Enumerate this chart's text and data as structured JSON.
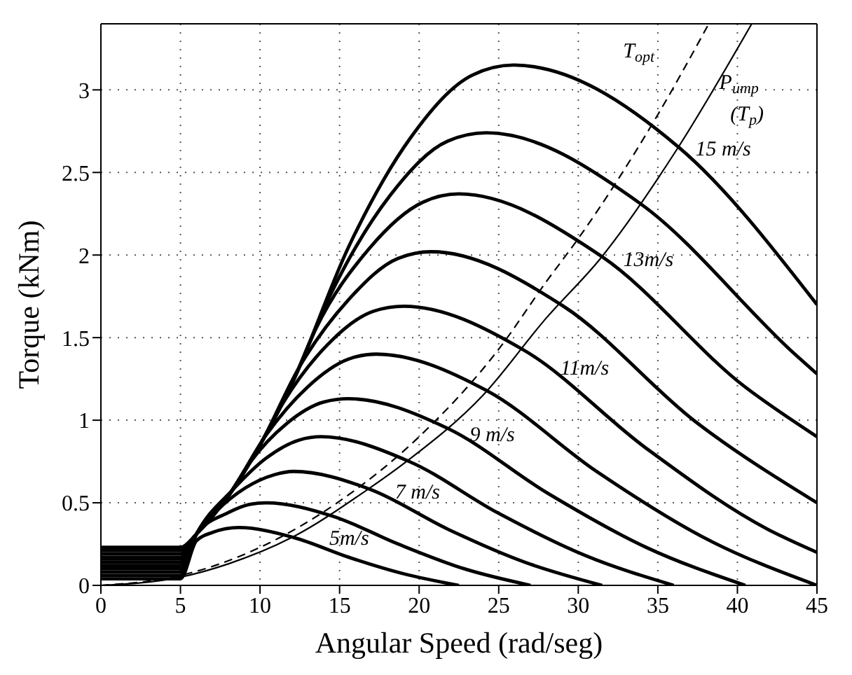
{
  "chart_data": {
    "type": "line",
    "xlabel": "Angular Speed (rad/seg)",
    "ylabel": "Torque (kNm)",
    "xlim": [
      0,
      45
    ],
    "ylim": [
      0,
      3.4
    ],
    "xticks": [
      0,
      5,
      10,
      15,
      20,
      25,
      30,
      35,
      40,
      45
    ],
    "yticks": [
      0,
      0.5,
      1,
      1.5,
      2,
      2.5,
      3
    ],
    "grid": true,
    "marker": "none",
    "series": [
      {
        "color": "#000000",
        "x": [
          0,
          5,
          6,
          7,
          8.65,
          12.11,
          15.58,
          19.04,
          22.5
        ],
        "values": [
          0.04,
          0.04,
          0.27,
          0.32,
          0.35,
          0.29,
          0.17,
          0.07,
          0
        ]
      },
      {
        "color": "#000000",
        "x": [
          0,
          5,
          6,
          8,
          9.34,
          10.38,
          14.54,
          18.69,
          22.85,
          27
        ],
        "values": [
          0.06,
          0.06,
          0.31,
          0.44,
          0.49,
          0.5,
          0.42,
          0.25,
          0.1,
          0
        ]
      },
      {
        "color": "#000000",
        "x": [
          0,
          5,
          6,
          7.27,
          9.08,
          10.9,
          12.11,
          16.96,
          21.81,
          26.65,
          31.5
        ],
        "values": [
          0.08,
          0.08,
          0.31,
          0.45,
          0.59,
          0.67,
          0.69,
          0.58,
          0.34,
          0.14,
          0
        ]
      },
      {
        "color": "#000000",
        "x": [
          0,
          5,
          6,
          8.3,
          10.38,
          12.46,
          13.84,
          19.38,
          24.92,
          30.46,
          36
        ],
        "values": [
          0.1,
          0.1,
          0.31,
          0.58,
          0.77,
          0.88,
          0.9,
          0.75,
          0.44,
          0.18,
          0
        ]
      },
      {
        "color": "#000000",
        "x": [
          0,
          5,
          6,
          8,
          9.34,
          11.68,
          14.01,
          15.57,
          21.8,
          28.04,
          34.27,
          40.5
        ],
        "values": [
          0.12,
          0.12,
          0.31,
          0.54,
          0.74,
          0.98,
          1.11,
          1.13,
          0.95,
          0.56,
          0.23,
          0
        ]
      },
      {
        "color": "#000000",
        "x": [
          0,
          5,
          6,
          8,
          10.38,
          12.98,
          15.57,
          17.3,
          24.23,
          31.15,
          38.08,
          45
        ],
        "values": [
          0.14,
          0.14,
          0.31,
          0.54,
          0.91,
          1.2,
          1.37,
          1.4,
          1.18,
          0.69,
          0.28,
          0
        ]
      },
      {
        "color": "#000000",
        "x": [
          0,
          5,
          6,
          8,
          10,
          11.42,
          14.27,
          17.13,
          19.03,
          26.65,
          34.27,
          41.9,
          45
        ],
        "values": [
          0.16,
          0.16,
          0.31,
          0.54,
          0.85,
          1.1,
          1.46,
          1.66,
          1.69,
          1.42,
          0.83,
          0.34,
          0.2
        ]
      },
      {
        "color": "#000000",
        "x": [
          0,
          5,
          6,
          8,
          10,
          12.46,
          15.57,
          18.68,
          20.76,
          29.07,
          37.38,
          45
        ],
        "values": [
          0.17,
          0.17,
          0.31,
          0.54,
          0.85,
          1.32,
          1.73,
          1.98,
          2.02,
          1.69,
          0.99,
          0.5
        ]
      },
      {
        "color": "#000000",
        "x": [
          0,
          5,
          6,
          8,
          10,
          12,
          13.49,
          16.87,
          20.24,
          22.49,
          31.49,
          40.5,
          45
        ],
        "values": [
          0.19,
          0.19,
          0.31,
          0.54,
          0.85,
          1.22,
          1.55,
          2.04,
          2.32,
          2.37,
          1.99,
          1.2,
          0.9
        ]
      },
      {
        "color": "#000000",
        "x": [
          0,
          5,
          6,
          8,
          10,
          12,
          14.53,
          18.17,
          21.8,
          24.22,
          33.92,
          43.61,
          45
        ],
        "values": [
          0.21,
          0.21,
          0.31,
          0.54,
          0.85,
          1.22,
          1.78,
          2.36,
          2.69,
          2.74,
          2.31,
          1.4,
          1.28
        ]
      },
      {
        "color": "#000000",
        "x": [
          0,
          5,
          6,
          8,
          10,
          12,
          15.57,
          19.46,
          23.36,
          25.95,
          36.34,
          45
        ],
        "values": [
          0.23,
          0.23,
          0.31,
          0.54,
          0.85,
          1.22,
          2.05,
          2.71,
          3.09,
          3.15,
          2.65,
          1.7
        ]
      },
      {
        "color": "#000000",
        "line_style": "dashed",
        "x": [
          0,
          5,
          10,
          15,
          20,
          25,
          28,
          30,
          35,
          38.2
        ],
        "values": [
          0,
          0.06,
          0.23,
          0.51,
          0.9,
          1.43,
          1.84,
          2.1,
          2.85,
          3.4
        ]
      },
      {
        "color": "#000000",
        "line_style": "solid",
        "x": [
          0,
          5,
          8,
          12,
          16.6,
          19.2,
          24,
          28,
          31.4,
          36.2,
          40.9
        ],
        "values": [
          0,
          0.05,
          0.13,
          0.29,
          0.57,
          0.75,
          1.15,
          1.62,
          1.98,
          2.64,
          3.4
        ]
      }
    ],
    "annotations": [
      "5m/s",
      "7 m/s",
      "9 m/s",
      "11m/s",
      "13m/s",
      "15 m/s",
      "T$_{opt}$",
      "P$_{ump}$",
      "(T$_{p}$)"
    ]
  }
}
